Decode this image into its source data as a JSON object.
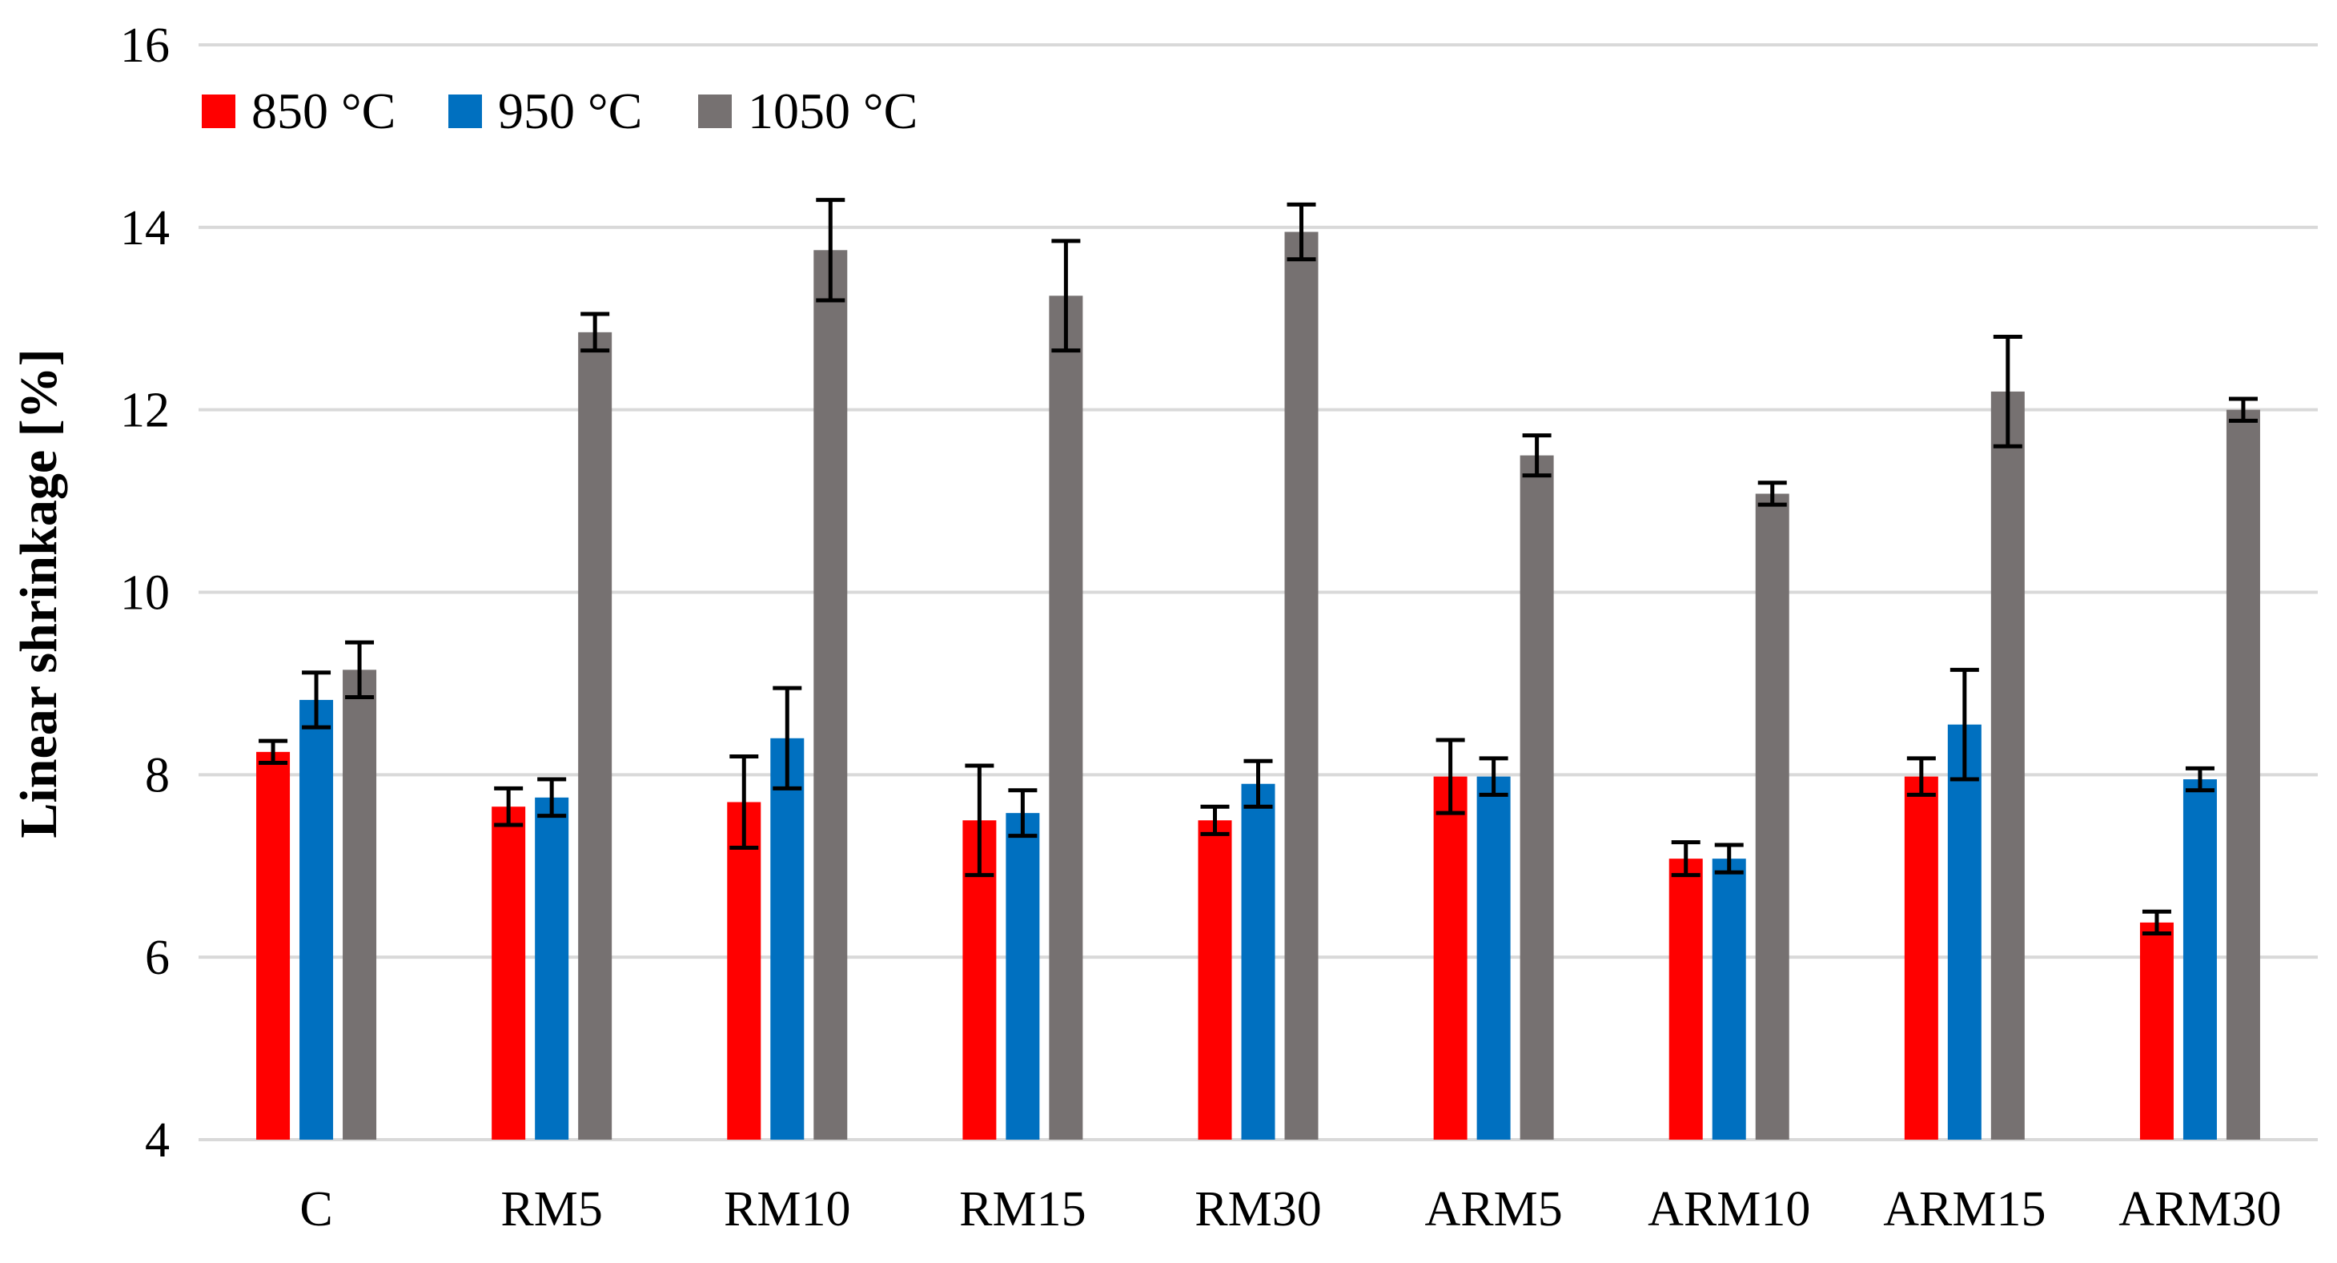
{
  "chart_data": {
    "type": "bar",
    "title": "",
    "xlabel": "",
    "ylabel": "Linear shrinkage [%]",
    "ylim": [
      4,
      16
    ],
    "yticks": [
      4,
      6,
      8,
      10,
      12,
      14,
      16
    ],
    "grid": true,
    "legend_position": "top-left",
    "categories": [
      "C",
      "RM5",
      "RM10",
      "RM15",
      "RM30",
      "ARM5",
      "ARM10",
      "ARM15",
      "ARM30"
    ],
    "series": [
      {
        "name": "850 °C",
        "color": "#ff0000",
        "values": [
          8.25,
          7.65,
          7.7,
          7.5,
          7.5,
          7.98,
          7.08,
          7.98,
          6.38
        ],
        "errors": [
          0.12,
          0.2,
          0.5,
          0.6,
          0.15,
          0.4,
          0.18,
          0.2,
          0.12
        ]
      },
      {
        "name": "950 °C",
        "color": "#0070c0",
        "values": [
          8.82,
          7.75,
          8.4,
          7.58,
          7.9,
          7.98,
          7.08,
          8.55,
          7.95
        ],
        "errors": [
          0.3,
          0.2,
          0.55,
          0.25,
          0.25,
          0.2,
          0.15,
          0.6,
          0.12
        ]
      },
      {
        "name": "1050 °C",
        "color": "#767171",
        "values": [
          9.15,
          12.85,
          13.75,
          13.25,
          13.95,
          11.5,
          11.08,
          12.2,
          12.0
        ],
        "errors": [
          0.3,
          0.2,
          0.55,
          0.6,
          0.3,
          0.22,
          0.12,
          0.6,
          0.12
        ]
      }
    ]
  }
}
